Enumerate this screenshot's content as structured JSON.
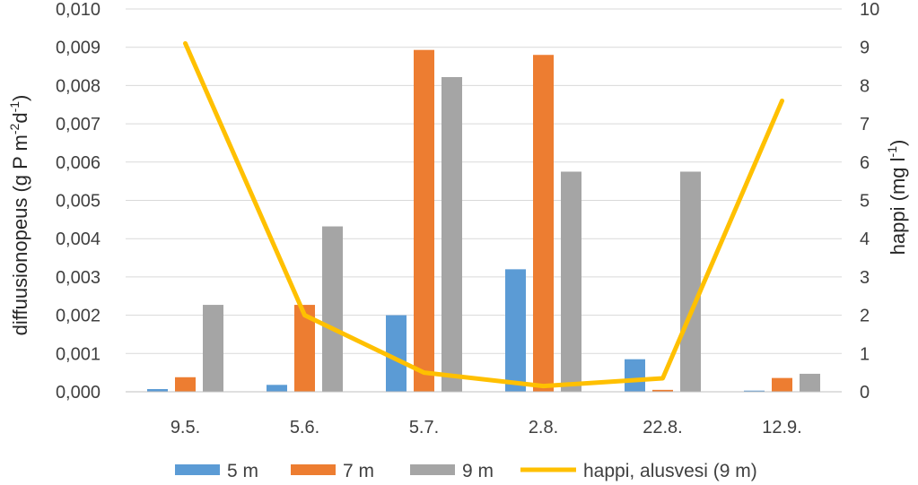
{
  "chart_data": {
    "type": "bar",
    "categories": [
      "9.5.",
      "5.6.",
      "5.7.",
      "2.8.",
      "22.8.",
      "12.9."
    ],
    "series": [
      {
        "name": "5 m",
        "type": "bar",
        "axis": "left",
        "color": "#5b9bd5",
        "values": [
          7e-05,
          0.00018,
          0.002,
          0.0032,
          0.00085,
          3e-05
        ]
      },
      {
        "name": "7 m",
        "type": "bar",
        "axis": "left",
        "color": "#ed7d31",
        "values": [
          0.00038,
          0.00227,
          0.00893,
          0.0088,
          5e-05,
          0.00036
        ]
      },
      {
        "name": "9 m",
        "type": "bar",
        "axis": "left",
        "color": "#a5a5a5",
        "values": [
          0.00227,
          0.00432,
          0.00822,
          0.00575,
          0.00575,
          0.00047
        ]
      },
      {
        "name": "happi, alusvesi (9 m)",
        "type": "line",
        "axis": "right",
        "color": "#ffc000",
        "values": [
          9.1,
          2.0,
          0.5,
          0.15,
          0.35,
          7.6
        ]
      }
    ],
    "y_left": {
      "ylim": [
        0,
        0.01
      ],
      "ticks": [
        "0,000",
        "0,001",
        "0,002",
        "0,003",
        "0,004",
        "0,005",
        "0,006",
        "0,007",
        "0,008",
        "0,009",
        "0,010"
      ],
      "label_main": "diffuusionopeus (g P m",
      "label_sup1": "-2",
      "label_mid": "d",
      "label_sup2": "-1",
      "label_end": ")"
    },
    "y_right": {
      "ylim": [
        0,
        10
      ],
      "ticks": [
        "0",
        "1",
        "2",
        "3",
        "4",
        "5",
        "6",
        "7",
        "8",
        "9",
        "10"
      ],
      "label_main": "happi (mg l",
      "label_sup": "-1",
      "label_end": ")"
    },
    "grid": true,
    "legend_position": "bottom"
  }
}
